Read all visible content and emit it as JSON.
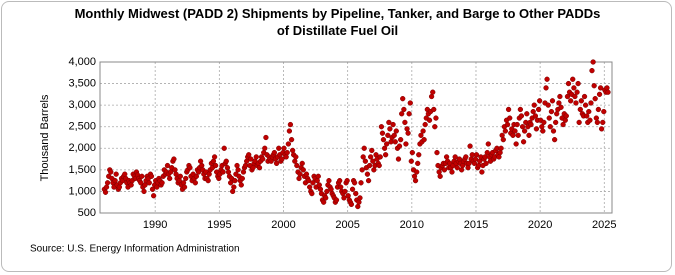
{
  "chart_data": {
    "type": "scatter",
    "title": "Monthly Midwest (PADD 2) Shipments by Pipeline, Tanker, and Barge to Other PADDs of Distillate Fuel Oil",
    "y_label": "Thousand Barrels",
    "source": "Source: U.S. Energy Information Administration",
    "color": "#c00000",
    "grid": true,
    "xlim": [
      1985.7,
      2025.6
    ],
    "xticks": [
      1990,
      1995,
      2000,
      2005,
      2010,
      2015,
      2020,
      2025
    ],
    "ylim": [
      500,
      4000
    ],
    "yticks": [
      500,
      {
        "value": 1000,
        "label": "1,000"
      },
      {
        "value": 1500,
        "label": "1,500"
      },
      {
        "value": 2000,
        "label": "2,000"
      },
      {
        "value": 2500,
        "label": "2,500"
      },
      {
        "value": 3000,
        "label": "3,000"
      },
      {
        "value": 3500,
        "label": "3,500"
      },
      {
        "value": 4000,
        "label": "4,000"
      }
    ],
    "x": [
      1986.04,
      1986.13,
      1986.21,
      1986.29,
      1986.38,
      1986.46,
      1986.54,
      1986.63,
      1986.71,
      1986.79,
      1986.88,
      1986.96,
      1987.04,
      1987.13,
      1987.21,
      1987.29,
      1987.38,
      1987.46,
      1987.54,
      1987.63,
      1987.71,
      1987.79,
      1987.88,
      1987.96,
      1988.04,
      1988.13,
      1988.21,
      1988.29,
      1988.38,
      1988.46,
      1988.54,
      1988.63,
      1988.71,
      1988.79,
      1988.88,
      1988.96,
      1989.04,
      1989.13,
      1989.21,
      1989.29,
      1989.38,
      1989.46,
      1989.54,
      1989.63,
      1989.71,
      1989.79,
      1989.88,
      1989.96,
      1990.04,
      1990.13,
      1990.21,
      1990.29,
      1990.38,
      1990.46,
      1990.54,
      1990.63,
      1990.71,
      1990.79,
      1990.88,
      1990.96,
      1991.04,
      1991.13,
      1991.21,
      1991.29,
      1991.38,
      1991.46,
      1991.54,
      1991.63,
      1991.71,
      1991.79,
      1991.88,
      1991.96,
      1992.04,
      1992.13,
      1992.21,
      1992.29,
      1992.38,
      1992.46,
      1992.54,
      1992.63,
      1992.71,
      1992.79,
      1992.88,
      1992.96,
      1993.04,
      1993.13,
      1993.21,
      1993.29,
      1993.38,
      1993.46,
      1993.54,
      1993.63,
      1993.71,
      1993.79,
      1993.88,
      1993.96,
      1994.04,
      1994.13,
      1994.21,
      1994.29,
      1994.38,
      1994.46,
      1994.54,
      1994.63,
      1994.71,
      1994.79,
      1994.88,
      1994.96,
      1995.04,
      1995.13,
      1995.21,
      1995.29,
      1995.38,
      1995.46,
      1995.54,
      1995.63,
      1995.71,
      1995.79,
      1995.88,
      1995.96,
      1996.04,
      1996.13,
      1996.21,
      1996.29,
      1996.38,
      1996.46,
      1996.54,
      1996.63,
      1996.71,
      1996.79,
      1996.88,
      1996.96,
      1997.04,
      1997.13,
      1997.21,
      1997.29,
      1997.38,
      1997.46,
      1997.54,
      1997.63,
      1997.71,
      1997.79,
      1997.88,
      1997.96,
      1998.04,
      1998.13,
      1998.21,
      1998.29,
      1998.38,
      1998.46,
      1998.54,
      1998.63,
      1998.71,
      1998.79,
      1998.88,
      1998.96,
      1999.04,
      1999.13,
      1999.21,
      1999.29,
      1999.38,
      1999.46,
      1999.54,
      1999.63,
      1999.71,
      1999.79,
      1999.88,
      1999.96,
      2000.04,
      2000.13,
      2000.21,
      2000.29,
      2000.38,
      2000.46,
      2000.54,
      2000.63,
      2000.71,
      2000.79,
      2000.88,
      2000.96,
      2001.04,
      2001.13,
      2001.21,
      2001.29,
      2001.38,
      2001.46,
      2001.54,
      2001.63,
      2001.71,
      2001.79,
      2001.88,
      2001.96,
      2002.04,
      2002.13,
      2002.21,
      2002.29,
      2002.38,
      2002.46,
      2002.54,
      2002.63,
      2002.71,
      2002.79,
      2002.88,
      2002.96,
      2003.04,
      2003.13,
      2003.21,
      2003.29,
      2003.38,
      2003.46,
      2003.54,
      2003.63,
      2003.71,
      2003.79,
      2003.88,
      2003.96,
      2004.04,
      2004.13,
      2004.21,
      2004.29,
      2004.38,
      2004.46,
      2004.54,
      2004.63,
      2004.71,
      2004.79,
      2004.88,
      2004.96,
      2005.04,
      2005.13,
      2005.21,
      2005.29,
      2005.38,
      2005.46,
      2005.54,
      2005.63,
      2005.71,
      2005.79,
      2005.88,
      2005.96,
      2006.04,
      2006.13,
      2006.21,
      2006.29,
      2006.38,
      2006.46,
      2006.54,
      2006.63,
      2006.71,
      2006.79,
      2006.88,
      2006.96,
      2007.04,
      2007.13,
      2007.21,
      2007.29,
      2007.38,
      2007.46,
      2007.54,
      2007.63,
      2007.71,
      2007.79,
      2007.88,
      2007.96,
      2008.04,
      2008.13,
      2008.21,
      2008.29,
      2008.38,
      2008.46,
      2008.54,
      2008.63,
      2008.71,
      2008.79,
      2008.88,
      2008.96,
      2009.04,
      2009.13,
      2009.21,
      2009.29,
      2009.38,
      2009.46,
      2009.54,
      2009.63,
      2009.71,
      2009.79,
      2009.88,
      2009.96,
      2010.04,
      2010.13,
      2010.21,
      2010.29,
      2010.38,
      2010.46,
      2010.54,
      2010.63,
      2010.71,
      2010.79,
      2010.88,
      2010.96,
      2011.04,
      2011.13,
      2011.21,
      2011.29,
      2011.38,
      2011.46,
      2011.54,
      2011.63,
      2011.71,
      2011.79,
      2011.88,
      2011.96,
      2012.04,
      2012.13,
      2012.21,
      2012.29,
      2012.38,
      2012.46,
      2012.54,
      2012.63,
      2012.71,
      2012.79,
      2012.88,
      2012.96,
      2013.04,
      2013.13,
      2013.21,
      2013.29,
      2013.38,
      2013.46,
      2013.54,
      2013.63,
      2013.71,
      2013.79,
      2013.88,
      2013.96,
      2014.04,
      2014.13,
      2014.21,
      2014.29,
      2014.38,
      2014.46,
      2014.54,
      2014.63,
      2014.71,
      2014.79,
      2014.88,
      2014.96,
      2015.04,
      2015.13,
      2015.21,
      2015.29,
      2015.38,
      2015.46,
      2015.54,
      2015.63,
      2015.71,
      2015.79,
      2015.88,
      2015.96,
      2016.04,
      2016.13,
      2016.21,
      2016.29,
      2016.38,
      2016.46,
      2016.54,
      2016.63,
      2016.71,
      2016.79,
      2016.88,
      2016.96,
      2017.04,
      2017.13,
      2017.21,
      2017.29,
      2017.38,
      2017.46,
      2017.54,
      2017.63,
      2017.71,
      2017.79,
      2017.88,
      2017.96,
      2018.04,
      2018.13,
      2018.21,
      2018.29,
      2018.38,
      2018.46,
      2018.54,
      2018.63,
      2018.71,
      2018.79,
      2018.88,
      2018.96,
      2019.04,
      2019.13,
      2019.21,
      2019.29,
      2019.38,
      2019.46,
      2019.54,
      2019.63,
      2019.71,
      2019.79,
      2019.88,
      2019.96,
      2020.04,
      2020.13,
      2020.21,
      2020.29,
      2020.38,
      2020.46,
      2020.54,
      2020.63,
      2020.71,
      2020.79,
      2020.88,
      2020.96,
      2021.04,
      2021.13,
      2021.21,
      2021.29,
      2021.38,
      2021.46,
      2021.54,
      2021.63,
      2021.71,
      2021.79,
      2021.88,
      2021.96,
      2022.04,
      2022.13,
      2022.21,
      2022.29,
      2022.38,
      2022.46,
      2022.54,
      2022.63,
      2022.71,
      2022.79,
      2022.88,
      2022.96,
      2023.04,
      2023.13,
      2023.21,
      2023.29,
      2023.38,
      2023.46,
      2023.54,
      2023.63,
      2023.71,
      2023.79,
      2023.88,
      2023.96,
      2024.04,
      2024.13,
      2024.21,
      2024.29,
      2024.38,
      2024.46,
      2024.54,
      2024.63,
      2024.71,
      2024.79,
      2024.88,
      2024.96,
      2025.04,
      2025.13,
      2025.21,
      2025.29
    ],
    "values": [
      1050,
      980,
      1100,
      1200,
      1350,
      1500,
      1450,
      1300,
      1200,
      1100,
      1250,
      1400,
      1150,
      1050,
      1100,
      1200,
      1300,
      1250,
      1350,
      1400,
      1300,
      1200,
      1100,
      1250,
      1200,
      1150,
      1250,
      1400,
      1350,
      1300,
      1450,
      1380,
      1300,
      1250,
      1200,
      1350,
      1100,
      1000,
      1150,
      1250,
      1350,
      1300,
      1200,
      1400,
      1350,
      1050,
      900,
      1150,
      1250,
      1100,
      1200,
      1300,
      1250,
      1150,
      1200,
      1350,
      1500,
      1400,
      1450,
      1600,
      1400,
      1300,
      1450,
      1550,
      1700,
      1750,
      1500,
      1400,
      1300,
      1200,
      1250,
      1350,
      1150,
      1050,
      1200,
      1100,
      1300,
      1450,
      1500,
      1600,
      1550,
      1350,
      1250,
      1400,
      1300,
      1200,
      1350,
      1500,
      1450,
      1550,
      1700,
      1600,
      1500,
      1400,
      1300,
      1450,
      1300,
      1250,
      1400,
      1500,
      1650,
      1550,
      1700,
      1800,
      1600,
      1450,
      1350,
      1300,
      1400,
      1500,
      1600,
      1450,
      2000,
      1650,
      1700,
      1550,
      1450,
      1350,
      1200,
      1300,
      1000,
      1100,
      1250,
      1400,
      1600,
      1500,
      1350,
      1250,
      1150,
      1300,
      1450,
      1550,
      1600,
      1700,
      1800,
      1850,
      1600,
      1750,
      1500,
      1550,
      1650,
      1700,
      1800,
      1600,
      1650,
      1550,
      1700,
      1800,
      1750,
      1900,
      2000,
      2250,
      1850,
      1700,
      1800,
      1750,
      1700,
      1800,
      1850,
      1900,
      1750,
      1650,
      1800,
      2000,
      1850,
      1700,
      1750,
      1900,
      2000,
      1850,
      1800,
      1900,
      2100,
      2400,
      2550,
      2200,
      1950,
      1850,
      1700,
      1800,
      1600,
      1450,
      1300,
      1400,
      1550,
      1650,
      1500,
      1350,
      1200,
      1400,
      1300,
      1250,
      1100,
      1000,
      950,
      1200,
      1350,
      1300,
      1100,
      1250,
      1350,
      1150,
      1050,
      950,
      800,
      750,
      900,
      850,
      1000,
      1150,
      1250,
      1100,
      1050,
      950,
      900,
      850,
      750,
      800,
      1100,
      1200,
      1250,
      1100,
      1000,
      950,
      850,
      1000,
      1200,
      1250,
      900,
      800,
      750,
      700,
      1050,
      1250,
      1200,
      950,
      800,
      650,
      750,
      850,
      1200,
      1500,
      1800,
      2000,
      1700,
      1550,
      1400,
      1250,
      1600,
      1800,
      1950,
      1700,
      1500,
      1600,
      1850,
      1750,
      1650,
      1600,
      1800,
      2500,
      2350,
      2200,
      2000,
      1850,
      2100,
      2300,
      2600,
      2450,
      2150,
      2250,
      2550,
      2300,
      2150,
      2400,
      2000,
      1750,
      2050,
      2200,
      2800,
      3150,
      2900,
      2600,
      2100,
      2450,
      2350,
      2800,
      3050,
      1700,
      1900,
      1500,
      1350,
      1250,
      1450,
      1650,
      1850,
      2100,
      2300,
      2150,
      2400,
      2200,
      2550,
      2700,
      2900,
      2800,
      2650,
      2850,
      3200,
      3300,
      2900,
      2500,
      2700,
      1900,
      1600,
      1450,
      1350,
      1550,
      1600,
      1650,
      1500,
      1650,
      1800,
      1700,
      1550,
      1650,
      1550,
      1450,
      1600,
      1700,
      1800,
      1650,
      1550,
      1700,
      1750,
      1650,
      1500,
      1600,
      1700,
      1750,
      1800,
      1650,
      1550,
      1650,
      2050,
      1750,
      1850,
      1700,
      1650,
      1750,
      1850,
      1550,
      1600,
      1700,
      1800,
      1450,
      1600,
      1750,
      1800,
      1650,
      1900,
      2100,
      1800,
      1700,
      1850,
      1900,
      1750,
      1800,
      1950,
      2000,
      1850,
      1800,
      1900,
      2000,
      2300,
      2200,
      2500,
      2400,
      2650,
      2550,
      2900,
      2700,
      2350,
      2450,
      2300,
      2550,
      2400,
      2100,
      2550,
      2300,
      2700,
      2900,
      2750,
      2500,
      2150,
      2400,
      2600,
      2800,
      2500,
      2300,
      2600,
      2550,
      2700,
      2850,
      3000,
      2750,
      2450,
      2650,
      2900,
      3100,
      2650,
      2500,
      2400,
      2600,
      3050,
      3400,
      3600,
      3000,
      2700,
      2500,
      2850,
      3100,
      2400,
      2200,
      2600,
      2800,
      2900,
      3050,
      3200,
      2950,
      2700,
      2550,
      2800,
      2650,
      2750,
      3200,
      3500,
      3300,
      3100,
      3250,
      3600,
      3400,
      3200,
      3050,
      3300,
      3500,
      2600,
      2900,
      3100,
      2800,
      2750,
      3200,
      3000,
      2750,
      2600,
      2850,
      2650,
      3050,
      3800,
      4000,
      3450,
      3150,
      2700,
      2600,
      2900,
      3250,
      3400,
      2450,
      2600,
      2850,
      3350,
      3300,
      3400,
      3300
    ]
  }
}
